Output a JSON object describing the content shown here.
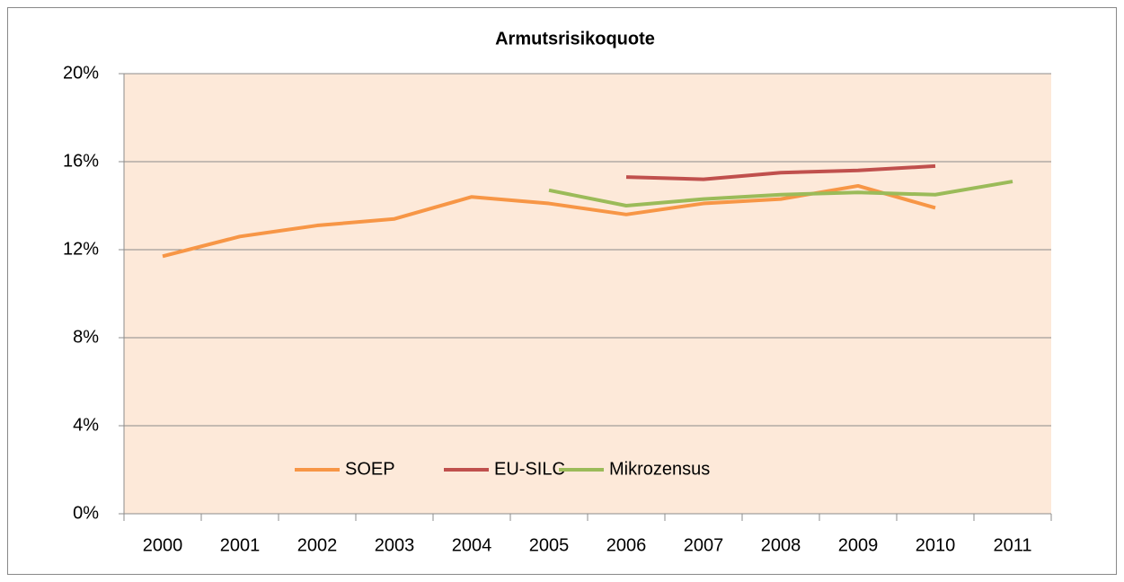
{
  "chart_data": {
    "type": "line",
    "title": "Armutsrisikoquote",
    "categories": [
      "2000",
      "2001",
      "2002",
      "2003",
      "2004",
      "2005",
      "2006",
      "2007",
      "2008",
      "2009",
      "2010",
      "2011"
    ],
    "series": [
      {
        "name": "SOEP",
        "color": "#f79646",
        "values": [
          11.7,
          12.6,
          13.1,
          13.4,
          14.4,
          14.1,
          13.6,
          14.1,
          14.3,
          14.9,
          13.9,
          null
        ]
      },
      {
        "name": "EU-SILC",
        "color": "#c0504d",
        "values": [
          null,
          null,
          null,
          null,
          null,
          null,
          15.3,
          15.2,
          15.5,
          15.6,
          15.8,
          null
        ]
      },
      {
        "name": "Mikrozensus",
        "color": "#9bbb59",
        "values": [
          null,
          null,
          null,
          null,
          null,
          14.7,
          14.0,
          14.3,
          14.5,
          14.6,
          14.5,
          15.1
        ]
      }
    ],
    "ylim": [
      0,
      20
    ],
    "yticks": [
      {
        "value": 0,
        "label": "0%"
      },
      {
        "value": 4,
        "label": "4%"
      },
      {
        "value": 8,
        "label": "8%"
      },
      {
        "value": 12,
        "label": "12%"
      },
      {
        "value": 16,
        "label": "16%"
      },
      {
        "value": 20,
        "label": "20%"
      }
    ],
    "grid": true,
    "legend": "lower center"
  }
}
